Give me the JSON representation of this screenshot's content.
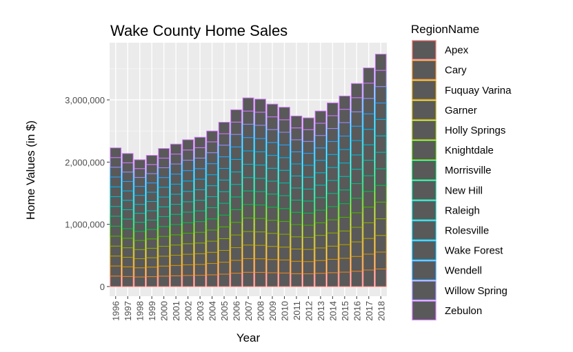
{
  "chart_data": {
    "type": "bar",
    "stacked": true,
    "title": "Wake County Home Sales",
    "xlabel": "Year",
    "ylabel": "Home Values (in $)",
    "ylim": [
      0,
      3800000
    ],
    "yticks": [
      0,
      1000000,
      2000000,
      3000000
    ],
    "ytick_labels": [
      "0",
      "1,000,000",
      "2,000,000",
      "3,000,000"
    ],
    "grid": true,
    "legend_title": "RegionName",
    "legend_position": "right",
    "bar_fill": "#595959",
    "categories": [
      "1996",
      "1997",
      "1998",
      "1999",
      "2000",
      "2001",
      "2002",
      "2003",
      "2004",
      "2005",
      "2006",
      "2007",
      "2008",
      "2009",
      "2010",
      "2011",
      "2012",
      "2013",
      "2014",
      "2015",
      "2016",
      "2017",
      "2018"
    ],
    "totals": [
      2220000,
      2130000,
      2030000,
      2100000,
      2210000,
      2280000,
      2350000,
      2390000,
      2490000,
      2630000,
      2830000,
      3020000,
      3000000,
      2920000,
      2870000,
      2730000,
      2700000,
      2810000,
      2940000,
      3050000,
      3250000,
      3500000,
      3720000
    ],
    "series": [
      {
        "name": "Apex",
        "color": "#F8766D",
        "share": 0.076
      },
      {
        "name": "Cary",
        "color": "#E7851E",
        "share": 0.073
      },
      {
        "name": "Fuquay Varina",
        "color": "#D09400",
        "share": 0.072
      },
      {
        "name": "Garner",
        "color": "#B2A100",
        "share": 0.072
      },
      {
        "name": "Holly Springs",
        "color": "#89AC00",
        "share": 0.072
      },
      {
        "name": "Knightdale",
        "color": "#45B500",
        "share": 0.072
      },
      {
        "name": "Morrisville",
        "color": "#00BC51",
        "share": 0.072
      },
      {
        "name": "New Hill",
        "color": "#00C087",
        "share": 0.071
      },
      {
        "name": "Raleigh",
        "color": "#00C0B2",
        "share": 0.071
      },
      {
        "name": "Rolesville",
        "color": "#00BCD6",
        "share": 0.071
      },
      {
        "name": "Wake Forest",
        "color": "#00B3F2",
        "share": 0.071
      },
      {
        "name": "Wendell",
        "color": "#29A3FF",
        "share": 0.071
      },
      {
        "name": "Willow Spring",
        "color": "#9C8DFF",
        "share": 0.07
      },
      {
        "name": "Zebulon",
        "color": "#D277FF",
        "share": 0.07
      }
    ]
  }
}
